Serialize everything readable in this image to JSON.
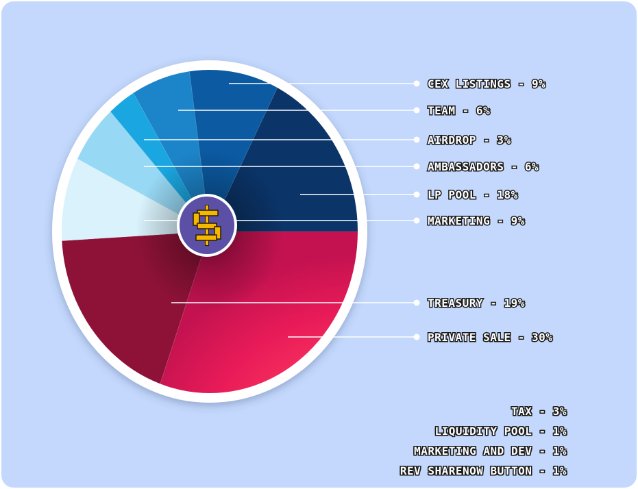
{
  "chart_data": {
    "type": "pie",
    "categories": [
      "CEX LISTINGS",
      "TEAM",
      "AIRDROP",
      "AMBASSADORS",
      "LP POOL",
      "MARKETING",
      "TREASURY",
      "PRIVATE SALE"
    ],
    "values": [
      9,
      6,
      3,
      6,
      18,
      9,
      19,
      30
    ],
    "labels": [
      "CEX LISTINGS - 9%",
      "TEAM - 6%",
      "AIRDROP - 3%",
      "AMBASSADORS - 6%",
      "LP POOL - 18%",
      "MARKETING - 9%",
      "TREASURY - 19%",
      "PRIVATE SALE - 30%"
    ],
    "legend_position": "right",
    "center_icon": "dollar-icon"
  },
  "colors": {
    "background": "#c3d8fc",
    "rim": "#ffffff",
    "center_disc": "#5b50a6",
    "dollar": "#f5b800"
  },
  "tax": {
    "items": [
      "TAX - 3%",
      "LIQUIDITY POOL - 1%",
      "MARKETING AND DEV - 1%",
      "REV SHARENOW BUTTON - 1%"
    ]
  }
}
